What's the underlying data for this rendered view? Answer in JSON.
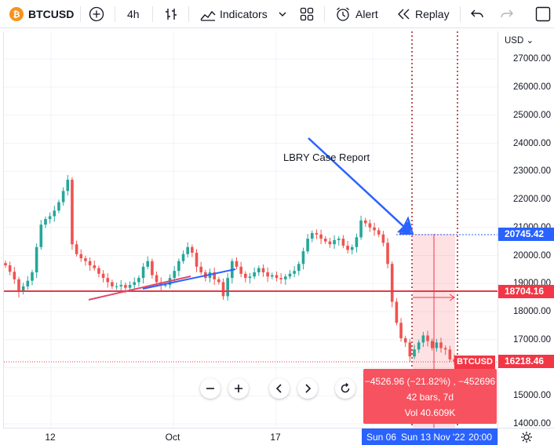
{
  "toolbar": {
    "symbol": "BTCUSD",
    "coin_glyph": "₿",
    "interval": "4h",
    "indicators_label": "Indicators",
    "alert_label": "Alert",
    "replay_label": "Replay"
  },
  "price_axis": {
    "currency": "USD",
    "ticks": [
      "27000.00",
      "26000.00",
      "25000.00",
      "24000.00",
      "23000.00",
      "22000.00",
      "21000.00",
      "20000.00",
      "19000.00",
      "18000.00",
      "17000.00",
      "15000.00",
      "14000.00"
    ],
    "labels": [
      {
        "value": "20745.42",
        "color": "#2962ff"
      },
      {
        "value": "18704.16",
        "color": "#f23645"
      },
      {
        "value": "16218.46",
        "color": "#f23645"
      }
    ],
    "symbol_tag": "BTCUSD"
  },
  "time_axis": {
    "ticks": [
      "12",
      "Oct",
      "17"
    ],
    "range_start": "Sun 06",
    "range_mid": "Sun 13 Nov '22",
    "range_time": "20:00"
  },
  "annotation": {
    "text": "LBRY Case Report"
  },
  "measure": {
    "line1": "−4526.96 (−21.82%) , −452696",
    "line2": "42 bars, 7d",
    "line3": "Vol 40.609K"
  },
  "colors": {
    "up": "#26a69a",
    "down": "#ef5350",
    "horizontal_line": "#e23b47",
    "trend_blue": "#2962ff",
    "measure_fill": "#f7525f"
  },
  "chart_data": {
    "type": "candlestick",
    "symbol": "BTCUSD",
    "interval": "4h",
    "ylim": [
      13800,
      27600
    ],
    "horizontal_level": 18704.16,
    "close_series": [
      19650,
      19420,
      19150,
      18700,
      18900,
      19100,
      19400,
      20300,
      21100,
      21300,
      21400,
      21600,
      21900,
      22300,
      22700,
      20400,
      20050,
      19900,
      19800,
      19650,
      19550,
      19350,
      19200,
      19050,
      18900,
      18900,
      18950,
      18850,
      18950,
      19050,
      19200,
      19600,
      19800,
      19300,
      19050,
      18950,
      18950,
      19200,
      19450,
      19800,
      20050,
      20300,
      20100,
      19600,
      19400,
      19200,
      19400,
      19150,
      19050,
      18550,
      19200,
      19800,
      19600,
      19350,
      19200,
      19250,
      19400,
      19550,
      19400,
      19250,
      19300,
      19200,
      19150,
      19250,
      19350,
      19450,
      19700,
      20150,
      20600,
      20800,
      20750,
      20600,
      20500,
      20400,
      20550,
      20600,
      20350,
      20200,
      20300,
      20650,
      21250,
      21150,
      21000,
      20900,
      20750,
      20450,
      19700,
      18350,
      17600,
      17050,
      16900,
      16400,
      16650,
      16900,
      17150,
      16950,
      16700,
      16900,
      16700,
      16650,
      16300,
      16218
    ]
  }
}
